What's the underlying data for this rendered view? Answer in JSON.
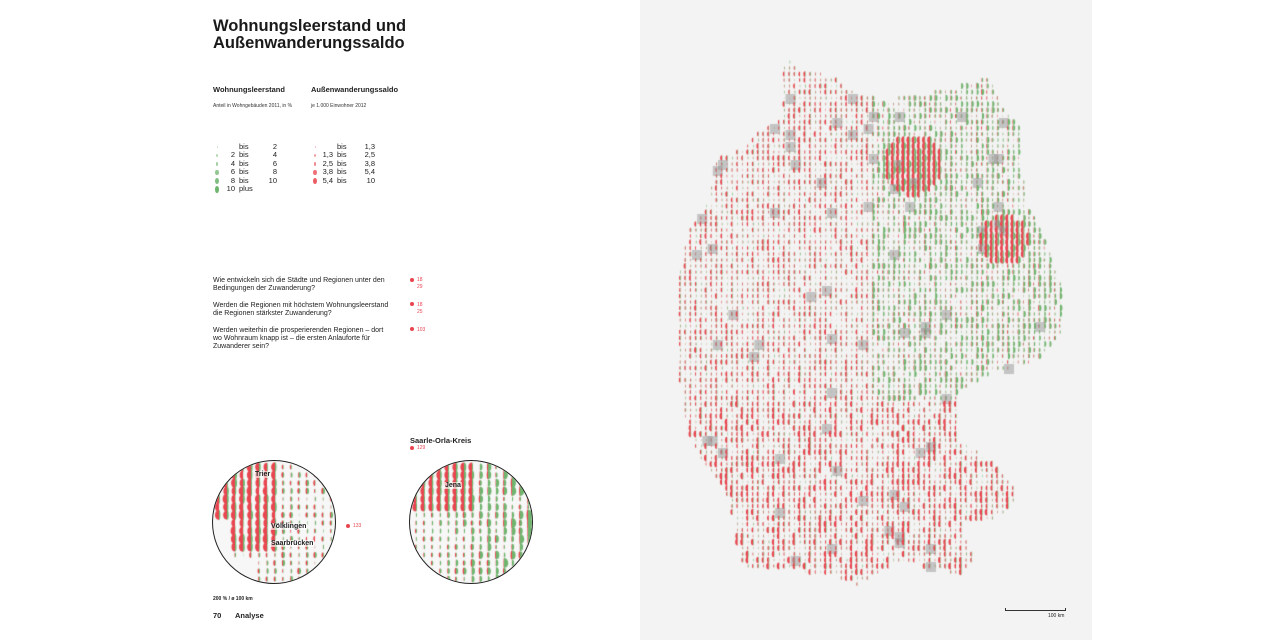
{
  "title": "Wohnungsleerstand und Außenwanderungssaldo",
  "legend_left": {
    "heading": "Wohnungsleerstand",
    "sub": "Anteil in Wohngebäuden 2011, in %",
    "rows": [
      [
        "",
        "bis",
        "2"
      ],
      [
        "2",
        "bis",
        "4"
      ],
      [
        "4",
        "bis",
        "6"
      ],
      [
        "6",
        "bis",
        "8"
      ],
      [
        "8",
        "bis",
        "10"
      ],
      [
        "10",
        "plus",
        ""
      ]
    ]
  },
  "legend_right": {
    "heading": "Außenwanderungssaldo",
    "sub": "je 1.000 Einwohner 2012",
    "rows": [
      [
        "",
        "bis",
        "1,3"
      ],
      [
        "1,3",
        "bis",
        "2,5"
      ],
      [
        "2,5",
        "bis",
        "3,8"
      ],
      [
        "3,8",
        "bis",
        "5,4"
      ],
      [
        "5,4",
        "bis",
        "10"
      ]
    ]
  },
  "questions": [
    {
      "text": "Wie entwickeln sich die Städte und Regionen unter den Bedingungen der Zuwanderung?",
      "refs": [
        "18",
        "29"
      ]
    },
    {
      "text": "Werden die Regionen mit höchstem Wohnungsleerstand die Regionen stärkster Zuwanderung?",
      "refs": [
        "18",
        "25"
      ]
    },
    {
      "text": "Werden weiterhin die prosperierenden Regionen – dort wo Wohnraum knapp ist – die ersten Anlauforte für Zuwanderer sein?",
      "refs": [
        "103"
      ]
    }
  ],
  "inset_left": {
    "labels": [
      "Trier",
      "Völklingen",
      "Saarbrücken"
    ],
    "ref": "133"
  },
  "inset_right": {
    "title": "Saarle-Orla-Kreis",
    "ref": "129",
    "labels": [
      "Jena"
    ]
  },
  "scale_note": "200 % / ø 100 km",
  "footer": {
    "page": "70",
    "section": "Analyse"
  },
  "map": {
    "scale_label": "100 km"
  },
  "colors": {
    "red": "#e8454f",
    "green": "#6fb56f"
  }
}
